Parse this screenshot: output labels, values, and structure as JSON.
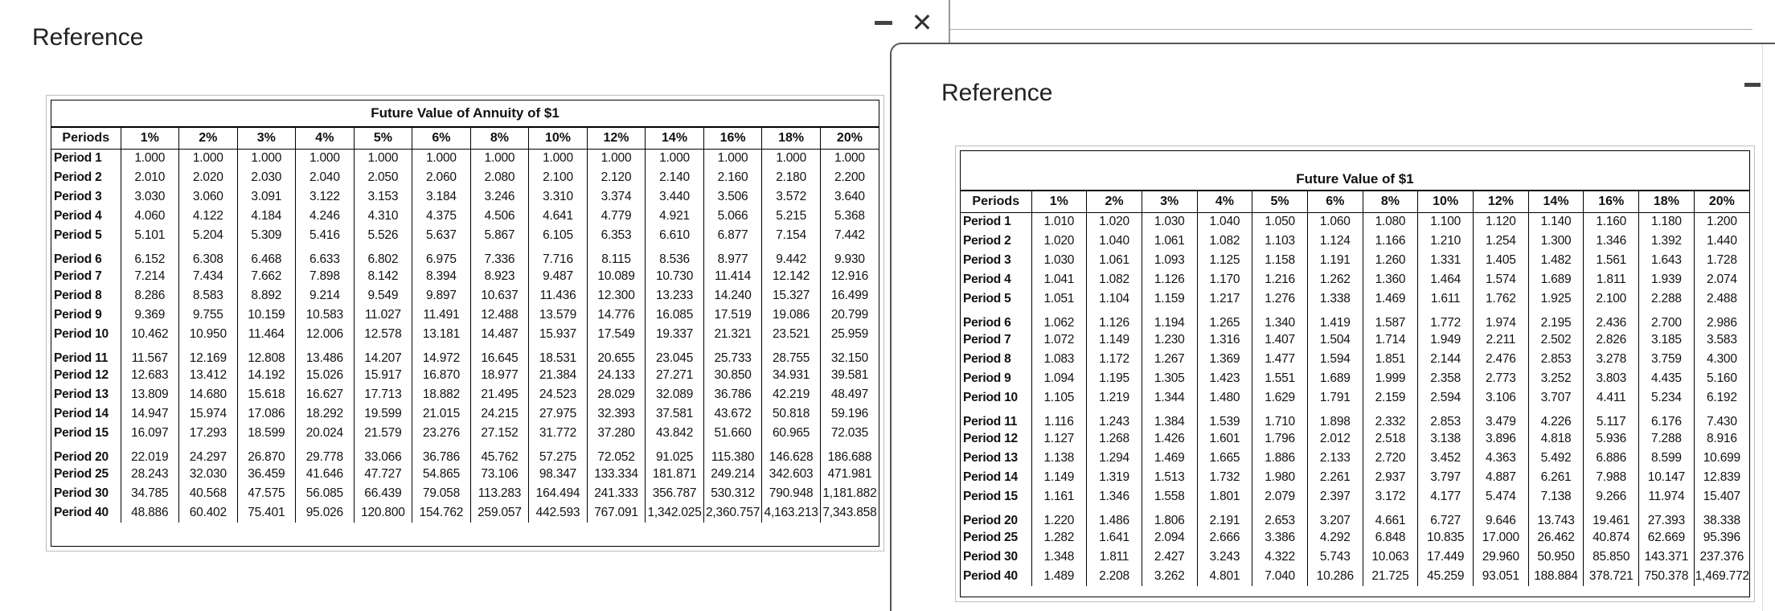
{
  "left_window": {
    "title": "Reference",
    "table": {
      "caption": "Future Value of Annuity of $1",
      "headers": [
        "Periods",
        "1%",
        "2%",
        "3%",
        "4%",
        "5%",
        "6%",
        "8%",
        "10%",
        "12%",
        "14%",
        "16%",
        "18%",
        "20%"
      ],
      "rows": [
        [
          "Period 1",
          "1.000",
          "1.000",
          "1.000",
          "1.000",
          "1.000",
          "1.000",
          "1.000",
          "1.000",
          "1.000",
          "1.000",
          "1.000",
          "1.000",
          "1.000"
        ],
        [
          "Period 2",
          "2.010",
          "2.020",
          "2.030",
          "2.040",
          "2.050",
          "2.060",
          "2.080",
          "2.100",
          "2.120",
          "2.140",
          "2.160",
          "2.180",
          "2.200"
        ],
        [
          "Period 3",
          "3.030",
          "3.060",
          "3.091",
          "3.122",
          "3.153",
          "3.184",
          "3.246",
          "3.310",
          "3.374",
          "3.440",
          "3.506",
          "3.572",
          "3.640"
        ],
        [
          "Period 4",
          "4.060",
          "4.122",
          "4.184",
          "4.246",
          "4.310",
          "4.375",
          "4.506",
          "4.641",
          "4.779",
          "4.921",
          "5.066",
          "5.215",
          "5.368"
        ],
        [
          "Period 5",
          "5.101",
          "5.204",
          "5.309",
          "5.416",
          "5.526",
          "5.637",
          "5.867",
          "6.105",
          "6.353",
          "6.610",
          "6.877",
          "7.154",
          "7.442"
        ],
        [
          "Period 6",
          "6.152",
          "6.308",
          "6.468",
          "6.633",
          "6.802",
          "6.975",
          "7.336",
          "7.716",
          "8.115",
          "8.536",
          "8.977",
          "9.442",
          "9.930"
        ],
        [
          "Period 7",
          "7.214",
          "7.434",
          "7.662",
          "7.898",
          "8.142",
          "8.394",
          "8.923",
          "9.487",
          "10.089",
          "10.730",
          "11.414",
          "12.142",
          "12.916"
        ],
        [
          "Period 8",
          "8.286",
          "8.583",
          "8.892",
          "9.214",
          "9.549",
          "9.897",
          "10.637",
          "11.436",
          "12.300",
          "13.233",
          "14.240",
          "15.327",
          "16.499"
        ],
        [
          "Period 9",
          "9.369",
          "9.755",
          "10.159",
          "10.583",
          "11.027",
          "11.491",
          "12.488",
          "13.579",
          "14.776",
          "16.085",
          "17.519",
          "19.086",
          "20.799"
        ],
        [
          "Period 10",
          "10.462",
          "10.950",
          "11.464",
          "12.006",
          "12.578",
          "13.181",
          "14.487",
          "15.937",
          "17.549",
          "19.337",
          "21.321",
          "23.521",
          "25.959"
        ],
        [
          "Period 11",
          "11.567",
          "12.169",
          "12.808",
          "13.486",
          "14.207",
          "14.972",
          "16.645",
          "18.531",
          "20.655",
          "23.045",
          "25.733",
          "28.755",
          "32.150"
        ],
        [
          "Period 12",
          "12.683",
          "13.412",
          "14.192",
          "15.026",
          "15.917",
          "16.870",
          "18.977",
          "21.384",
          "24.133",
          "27.271",
          "30.850",
          "34.931",
          "39.581"
        ],
        [
          "Period 13",
          "13.809",
          "14.680",
          "15.618",
          "16.627",
          "17.713",
          "18.882",
          "21.495",
          "24.523",
          "28.029",
          "32.089",
          "36.786",
          "42.219",
          "48.497"
        ],
        [
          "Period 14",
          "14.947",
          "15.974",
          "17.086",
          "18.292",
          "19.599",
          "21.015",
          "24.215",
          "27.975",
          "32.393",
          "37.581",
          "43.672",
          "50.818",
          "59.196"
        ],
        [
          "Period 15",
          "16.097",
          "17.293",
          "18.599",
          "20.024",
          "21.579",
          "23.276",
          "27.152",
          "31.772",
          "37.280",
          "43.842",
          "51.660",
          "60.965",
          "72.035"
        ],
        [
          "Period 20",
          "22.019",
          "24.297",
          "26.870",
          "29.778",
          "33.066",
          "36.786",
          "45.762",
          "57.275",
          "72.052",
          "91.025",
          "115.380",
          "146.628",
          "186.688"
        ],
        [
          "Period 25",
          "28.243",
          "32.030",
          "36.459",
          "41.646",
          "47.727",
          "54.865",
          "73.106",
          "98.347",
          "133.334",
          "181.871",
          "249.214",
          "342.603",
          "471.981"
        ],
        [
          "Period 30",
          "34.785",
          "40.568",
          "47.575",
          "56.085",
          "66.439",
          "79.058",
          "113.283",
          "164.494",
          "241.333",
          "356.787",
          "530.312",
          "790.948",
          "1,181.882"
        ],
        [
          "Period 40",
          "48.886",
          "60.402",
          "75.401",
          "95.026",
          "120.800",
          "154.762",
          "259.057",
          "442.593",
          "767.091",
          "1,342.025",
          "2,360.757",
          "4,163.213",
          "7,343.858"
        ]
      ]
    }
  },
  "right_window": {
    "title": "Reference",
    "table": {
      "caption": "Future Value of $1",
      "headers": [
        "Periods",
        "1%",
        "2%",
        "3%",
        "4%",
        "5%",
        "6%",
        "8%",
        "10%",
        "12%",
        "14%",
        "16%",
        "18%",
        "20%"
      ],
      "rows": [
        [
          "Period 1",
          "1.010",
          "1.020",
          "1.030",
          "1.040",
          "1.050",
          "1.060",
          "1.080",
          "1.100",
          "1.120",
          "1.140",
          "1.160",
          "1.180",
          "1.200"
        ],
        [
          "Period 2",
          "1.020",
          "1.040",
          "1.061",
          "1.082",
          "1.103",
          "1.124",
          "1.166",
          "1.210",
          "1.254",
          "1.300",
          "1.346",
          "1.392",
          "1.440"
        ],
        [
          "Period 3",
          "1.030",
          "1.061",
          "1.093",
          "1.125",
          "1.158",
          "1.191",
          "1.260",
          "1.331",
          "1.405",
          "1.482",
          "1.561",
          "1.643",
          "1.728"
        ],
        [
          "Period 4",
          "1.041",
          "1.082",
          "1.126",
          "1.170",
          "1.216",
          "1.262",
          "1.360",
          "1.464",
          "1.574",
          "1.689",
          "1.811",
          "1.939",
          "2.074"
        ],
        [
          "Period 5",
          "1.051",
          "1.104",
          "1.159",
          "1.217",
          "1.276",
          "1.338",
          "1.469",
          "1.611",
          "1.762",
          "1.925",
          "2.100",
          "2.288",
          "2.488"
        ],
        [
          "Period 6",
          "1.062",
          "1.126",
          "1.194",
          "1.265",
          "1.340",
          "1.419",
          "1.587",
          "1.772",
          "1.974",
          "2.195",
          "2.436",
          "2.700",
          "2.986"
        ],
        [
          "Period 7",
          "1.072",
          "1.149",
          "1.230",
          "1.316",
          "1.407",
          "1.504",
          "1.714",
          "1.949",
          "2.211",
          "2.502",
          "2.826",
          "3.185",
          "3.583"
        ],
        [
          "Period 8",
          "1.083",
          "1.172",
          "1.267",
          "1.369",
          "1.477",
          "1.594",
          "1.851",
          "2.144",
          "2.476",
          "2.853",
          "3.278",
          "3.759",
          "4.300"
        ],
        [
          "Period 9",
          "1.094",
          "1.195",
          "1.305",
          "1.423",
          "1.551",
          "1.689",
          "1.999",
          "2.358",
          "2.773",
          "3.252",
          "3.803",
          "4.435",
          "5.160"
        ],
        [
          "Period 10",
          "1.105",
          "1.219",
          "1.344",
          "1.480",
          "1.629",
          "1.791",
          "2.159",
          "2.594",
          "3.106",
          "3.707",
          "4.411",
          "5.234",
          "6.192"
        ],
        [
          "Period 11",
          "1.116",
          "1.243",
          "1.384",
          "1.539",
          "1.710",
          "1.898",
          "2.332",
          "2.853",
          "3.479",
          "4.226",
          "5.117",
          "6.176",
          "7.430"
        ],
        [
          "Period 12",
          "1.127",
          "1.268",
          "1.426",
          "1.601",
          "1.796",
          "2.012",
          "2.518",
          "3.138",
          "3.896",
          "4.818",
          "5.936",
          "7.288",
          "8.916"
        ],
        [
          "Period 13",
          "1.138",
          "1.294",
          "1.469",
          "1.665",
          "1.886",
          "2.133",
          "2.720",
          "3.452",
          "4.363",
          "5.492",
          "6.886",
          "8.599",
          "10.699"
        ],
        [
          "Period 14",
          "1.149",
          "1.319",
          "1.513",
          "1.732",
          "1.980",
          "2.261",
          "2.937",
          "3.797",
          "4.887",
          "6.261",
          "7.988",
          "10.147",
          "12.839"
        ],
        [
          "Period 15",
          "1.161",
          "1.346",
          "1.558",
          "1.801",
          "2.079",
          "2.397",
          "3.172",
          "4.177",
          "5.474",
          "7.138",
          "9.266",
          "11.974",
          "15.407"
        ],
        [
          "Period 20",
          "1.220",
          "1.486",
          "1.806",
          "2.191",
          "2.653",
          "3.207",
          "4.661",
          "6.727",
          "9.646",
          "13.743",
          "19.461",
          "27.393",
          "38.338"
        ],
        [
          "Period 25",
          "1.282",
          "1.641",
          "2.094",
          "2.666",
          "3.386",
          "4.292",
          "6.848",
          "10.835",
          "17.000",
          "26.462",
          "40.874",
          "62.669",
          "95.396"
        ],
        [
          "Period 30",
          "1.348",
          "1.811",
          "2.427",
          "3.243",
          "4.322",
          "5.743",
          "10.063",
          "17.449",
          "29.960",
          "50.950",
          "85.850",
          "143.371",
          "237.376"
        ],
        [
          "Period 40",
          "1.489",
          "2.208",
          "3.262",
          "4.801",
          "7.040",
          "10.286",
          "21.725",
          "45.259",
          "93.051",
          "188.884",
          "378.721",
          "750.378",
          "1,469.772"
        ]
      ]
    }
  }
}
